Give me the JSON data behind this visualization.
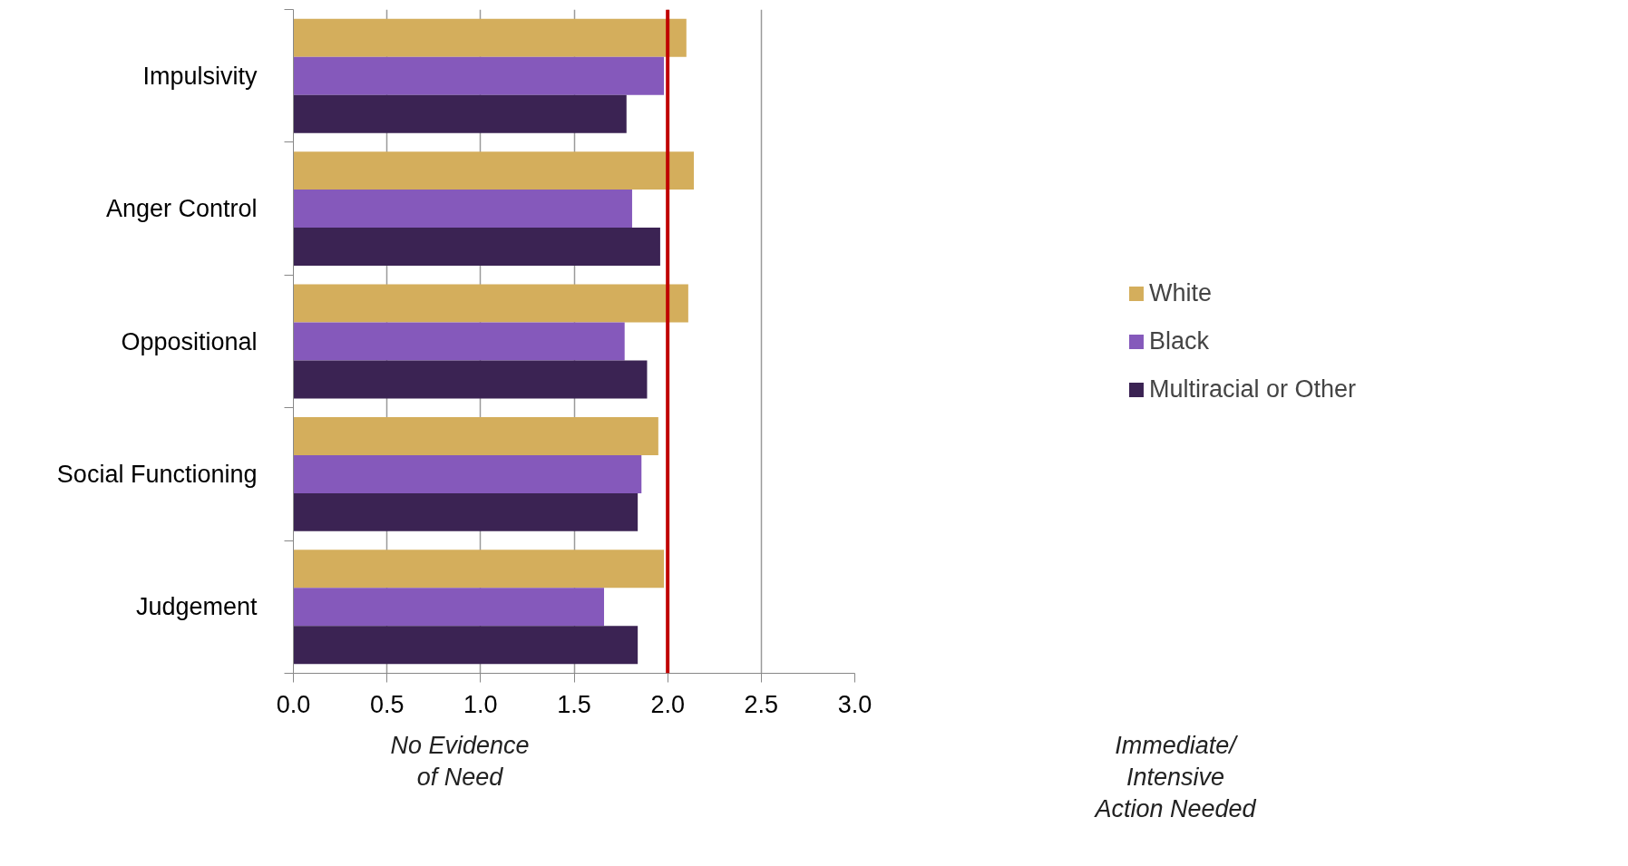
{
  "chart_data": {
    "type": "bar",
    "orientation": "horizontal",
    "categories": [
      "Impulsivity",
      "Anger Control",
      "Oppositional",
      "Social Functioning",
      "Judgement"
    ],
    "series": [
      {
        "name": "White",
        "color": "#d4ae5c",
        "values": [
          2.1,
          2.14,
          2.11,
          1.95,
          1.98
        ]
      },
      {
        "name": "Black",
        "color": "#8559bb",
        "values": [
          1.98,
          1.81,
          1.77,
          1.86,
          1.66
        ]
      },
      {
        "name": "Multiracial or Other",
        "color": "#3b2353",
        "values": [
          1.78,
          1.96,
          1.89,
          1.84,
          1.84
        ]
      }
    ],
    "xlim": [
      0,
      3
    ],
    "xticks": [
      {
        "value": 0,
        "label": "0.0"
      },
      {
        "value": 0.5,
        "label": "0.5"
      },
      {
        "value": 1,
        "label": "1.0"
      },
      {
        "value": 1.5,
        "label": "1.5"
      },
      {
        "value": 2,
        "label": "2.0"
      },
      {
        "value": 2.5,
        "label": "2.5"
      },
      {
        "value": 3,
        "label": "3.0"
      }
    ],
    "grid": "x",
    "legend": "right",
    "ref_lines": [
      {
        "axis": "x",
        "value": 2.0,
        "color": "#c00000"
      }
    ],
    "annotations": [
      "No Evidence\nof Need",
      "Immediate/\nIntensive\nAction Needed"
    ]
  }
}
